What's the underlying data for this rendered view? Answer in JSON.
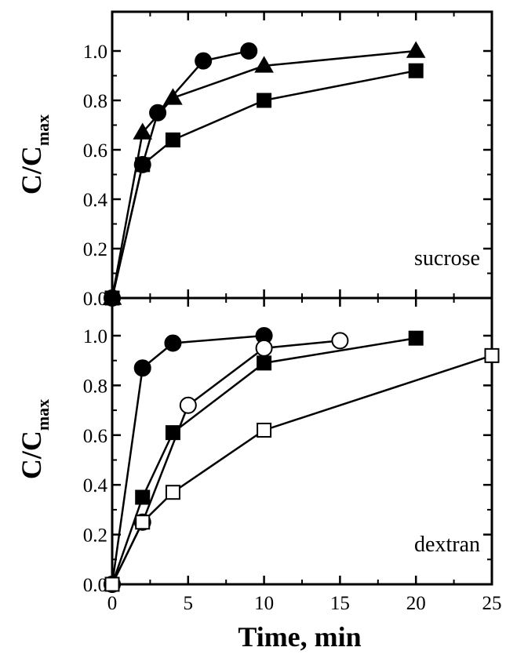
{
  "chart_data": [
    {
      "type": "line",
      "panel": "top",
      "annotation": "sucrose",
      "ylabel": {
        "main": "C/C",
        "sub": "max"
      },
      "xlim": [
        0,
        25
      ],
      "ylim": [
        0,
        1.1
      ],
      "yticks": [
        "0.0",
        "0.2",
        "0.4",
        "0.6",
        "0.8",
        "1.0"
      ],
      "grid": false,
      "series": [
        {
          "marker": "filled-circle",
          "x": [
            0,
            2,
            3,
            6,
            9
          ],
          "values": [
            0,
            0.54,
            0.75,
            0.96,
            1.0
          ]
        },
        {
          "marker": "filled-triangle",
          "x": [
            0,
            2,
            4,
            10,
            20
          ],
          "values": [
            0,
            0.67,
            0.81,
            0.94,
            1.0
          ]
        },
        {
          "marker": "filled-square",
          "x": [
            0,
            2,
            4,
            10,
            20
          ],
          "values": [
            0,
            0.54,
            0.64,
            0.8,
            0.92
          ]
        }
      ]
    },
    {
      "type": "line",
      "panel": "bottom",
      "annotation": "dextran",
      "ylabel": {
        "main": "C/C",
        "sub": "max"
      },
      "xlabel": "Time, min",
      "xlim": [
        0,
        25
      ],
      "ylim": [
        0,
        1.1
      ],
      "xticks": [
        "0",
        "5",
        "10",
        "15",
        "20",
        "25"
      ],
      "yticks": [
        "0.0",
        "0.2",
        "0.4",
        "0.6",
        "0.8",
        "1.0"
      ],
      "grid": false,
      "series": [
        {
          "marker": "filled-circle",
          "x": [
            0,
            2,
            4,
            10
          ],
          "values": [
            0,
            0.87,
            0.97,
            1.0
          ]
        },
        {
          "marker": "open-circle",
          "x": [
            0,
            2,
            5,
            10,
            15
          ],
          "values": [
            0,
            0.25,
            0.72,
            0.95,
            0.98
          ]
        },
        {
          "marker": "filled-square",
          "x": [
            0,
            2,
            4,
            10,
            20
          ],
          "values": [
            0,
            0.35,
            0.61,
            0.89,
            0.99
          ]
        },
        {
          "marker": "open-square",
          "x": [
            0,
            2,
            4,
            10,
            25
          ],
          "values": [
            0,
            0.25,
            0.37,
            0.62,
            0.92
          ]
        }
      ]
    }
  ]
}
